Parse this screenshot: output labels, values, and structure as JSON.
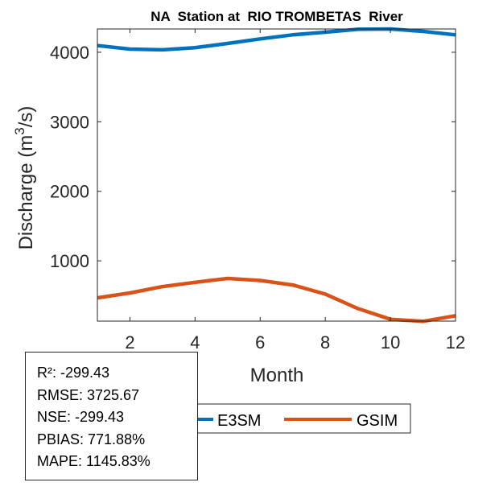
{
  "chart_data": {
    "type": "line",
    "title": "NA  Station at  RIO TROMBETAS  River",
    "xlabel": "Month",
    "ylabel": "Discharge (m³/s)",
    "ylabel_parts": {
      "pre": "Discharge (m",
      "sup": "3",
      "post": "/s)"
    },
    "x": [
      1,
      2,
      3,
      4,
      5,
      6,
      7,
      8,
      9,
      10,
      11,
      12
    ],
    "xlim": [
      1,
      12
    ],
    "ylim": [
      133,
      4335
    ],
    "xticks": [
      2,
      4,
      6,
      8,
      10,
      12
    ],
    "xtick_labels": [
      "2",
      "4",
      "6",
      "8",
      "10",
      "12"
    ],
    "yticks": [
      1000,
      2000,
      3000,
      4000
    ],
    "ytick_labels": [
      "1000",
      "2000",
      "3000",
      "4000"
    ],
    "grid": false,
    "legend_position": "bottom-outside",
    "series": [
      {
        "name": "E3SM",
        "color": "#0072BD",
        "values": [
          4096,
          4046,
          4035,
          4066,
          4127,
          4193,
          4250,
          4289,
          4330,
          4335,
          4300,
          4250
        ]
      },
      {
        "name": "GSIM",
        "color": "#D95319",
        "values": [
          468,
          538,
          630,
          691,
          746,
          718,
          653,
          522,
          314,
          160,
          130,
          210
        ]
      }
    ]
  },
  "stats": [
    "R²: -299.43",
    "RMSE: 3725.67",
    "NSE: -299.43",
    "PBIAS: 771.88%",
    "MAPE: 1145.83%"
  ]
}
